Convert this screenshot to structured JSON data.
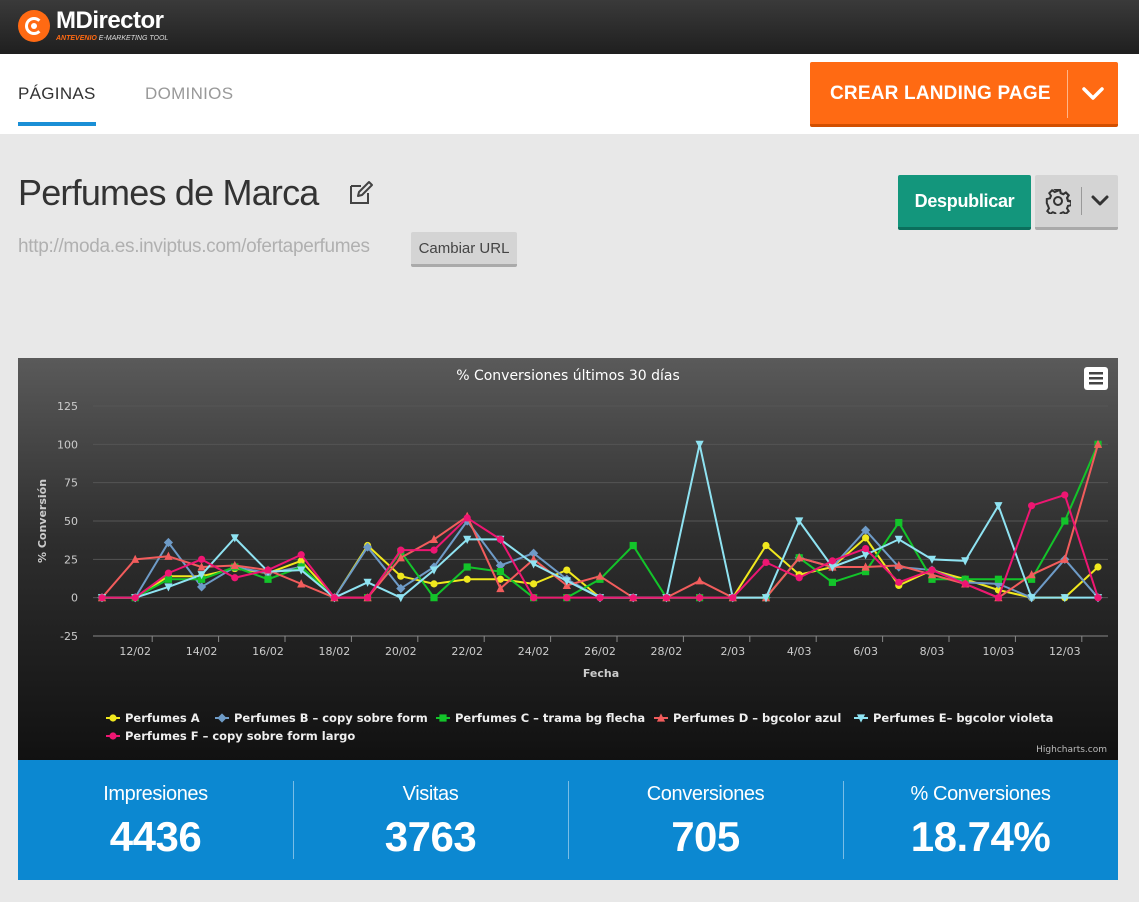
{
  "app": {
    "brand": "MDirector",
    "tagline_a": "ANTEVENIO",
    "tagline_b": "E-MARKETING TOOL"
  },
  "tabs": [
    {
      "label": "PÁGINAS",
      "active": true
    },
    {
      "label": "DOMINIOS",
      "active": false
    }
  ],
  "create_button": {
    "label": "CREAR LANDING PAGE"
  },
  "page": {
    "title": "Perfumes de Marca",
    "url": "http://moda.es.inviptus.com/ofertaperfumes",
    "change_url_label": "Cambiar URL",
    "unpublish_label": "Despublicar"
  },
  "stats": [
    {
      "label": "Impresiones",
      "value": "4436"
    },
    {
      "label": "Visitas",
      "value": "3763"
    },
    {
      "label": "Conversiones",
      "value": "705"
    },
    {
      "label": "% Conversiones",
      "value": "18.74%"
    }
  ],
  "colors": {
    "accent_orange": "#ff6a13",
    "accent_blue": "#0c88d1",
    "accent_green": "#13967c"
  },
  "icons": [
    "logo-icon",
    "chevron-down-icon",
    "edit-icon",
    "gear-icon",
    "menu-icon"
  ],
  "chart_data": {
    "type": "line",
    "title": "% Conversiones últimos 30 días",
    "xlabel": "Fecha",
    "ylabel": "% Conversión",
    "ylim": [
      -25,
      125
    ],
    "yticks": [
      -25,
      0,
      25,
      50,
      75,
      100,
      125
    ],
    "credits": "Highcharts.com",
    "legend_position": "bottom",
    "grid": true,
    "tick_labels": [
      "12/02",
      "14/02",
      "16/02",
      "18/02",
      "20/02",
      "22/02",
      "24/02",
      "26/02",
      "28/02",
      "2/03",
      "4/03",
      "6/03",
      "8/03",
      "10/03",
      "12/03"
    ],
    "x": [
      "11/02",
      "12/02",
      "13/02",
      "14/02",
      "15/02",
      "16/02",
      "17/02",
      "18/02",
      "19/02",
      "20/02",
      "21/02",
      "22/02",
      "23/02",
      "24/02",
      "25/02",
      "26/02",
      "27/02",
      "28/02",
      "1/03",
      "2/03",
      "3/03",
      "4/03",
      "5/03",
      "6/03",
      "7/03",
      "8/03",
      "9/03",
      "10/03",
      "11/03",
      "12/03",
      "13/03"
    ],
    "series": [
      {
        "name": "Perfumes A",
        "color": "#f0e81e",
        "marker": "circle",
        "values": [
          0,
          0,
          14,
          14,
          19,
          16,
          24,
          0,
          34,
          14,
          9,
          12,
          12,
          9,
          18,
          0,
          0,
          0,
          0,
          0,
          34,
          15,
          20,
          39,
          8,
          18,
          12,
          5,
          0,
          0,
          20
        ]
      },
      {
        "name": "Perfumes B – copy sobre form",
        "color": "#6e9bc7",
        "marker": "diamond",
        "values": [
          0,
          0,
          36,
          7,
          20,
          16,
          20,
          0,
          33,
          6,
          20,
          50,
          21,
          29,
          12,
          0,
          0,
          0,
          0,
          0,
          0,
          26,
          20,
          44,
          20,
          18,
          10,
          9,
          0,
          25,
          0
        ]
      },
      {
        "name": "Perfumes C – trama bg flecha",
        "color": "#13c42a",
        "marker": "square",
        "values": [
          0,
          0,
          12,
          12,
          20,
          12,
          20,
          0,
          0,
          30,
          0,
          20,
          17,
          0,
          0,
          12,
          34,
          0,
          0,
          0,
          0,
          26,
          10,
          17,
          49,
          12,
          12,
          12,
          12,
          50,
          100
        ]
      },
      {
        "name": "Perfumes D – bgcolor azul",
        "color": "#f25c5c",
        "marker": "triangle",
        "values": [
          0,
          25,
          27,
          20,
          21,
          18,
          9,
          0,
          0,
          26,
          38,
          53,
          6,
          25,
          8,
          14,
          0,
          0,
          11,
          0,
          0,
          26,
          20,
          20,
          21,
          15,
          9,
          0,
          15,
          25,
          100
        ]
      },
      {
        "name": "Perfumes E– bgcolor violeta",
        "color": "#8fe3f2",
        "marker": "triangle-down",
        "values": [
          0,
          0,
          7,
          15,
          39,
          17,
          18,
          0,
          10,
          0,
          18,
          38,
          38,
          22,
          11,
          0,
          0,
          0,
          100,
          0,
          0,
          50,
          20,
          28,
          38,
          25,
          24,
          60,
          0,
          0,
          0
        ]
      },
      {
        "name": "Perfumes F – copy sobre form largo",
        "color": "#ee1672",
        "marker": "circle",
        "values": [
          0,
          0,
          16,
          25,
          13,
          18,
          28,
          0,
          0,
          31,
          31,
          52,
          38,
          0,
          0,
          0,
          0,
          0,
          0,
          0,
          23,
          13,
          24,
          32,
          10,
          18,
          9,
          0,
          60,
          67,
          0
        ]
      }
    ]
  }
}
